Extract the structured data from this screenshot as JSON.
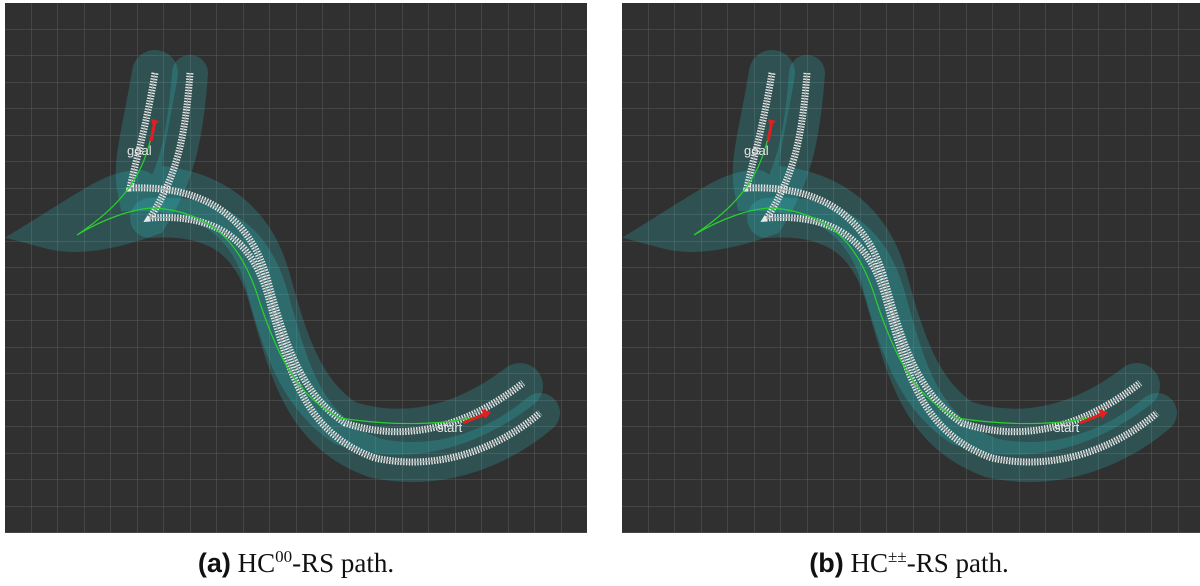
{
  "panels": [
    {
      "label": "(a)",
      "caption": {
        "prefix": "HC",
        "sup": "00",
        "suffix": "-RS path."
      },
      "goal": "goal",
      "start": "start"
    },
    {
      "label": "(b)",
      "caption": {
        "prefix": "HC",
        "sup": "±±",
        "suffix": "-RS path."
      },
      "goal": "goal",
      "start": "start"
    }
  ]
}
